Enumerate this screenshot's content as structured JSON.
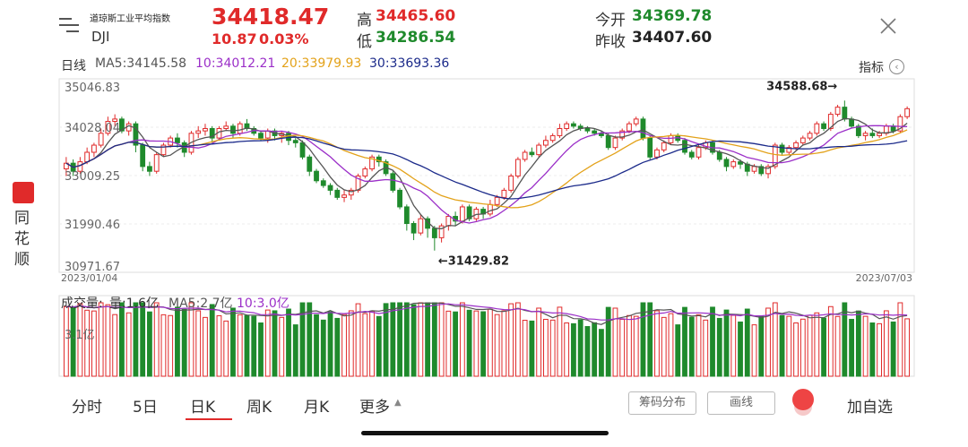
{
  "header": {
    "index_name": "道琼斯工业平均指数",
    "code": "DJI",
    "price": "34418.47",
    "change": "10.87",
    "change_pct": "0.03%",
    "high_label": "高",
    "high": "34465.60",
    "low_label": "低",
    "low": "34286.54",
    "open_label": "今开",
    "open": "34369.78",
    "prev_close_label": "昨收",
    "prev_close": "34407.60"
  },
  "chart_header": {
    "period": "日线",
    "ma5": "MA5:34145.58",
    "ma10": "10:34012.21",
    "ma20": "20:33979.93",
    "ma30": "30:33693.36",
    "indicator_label": "指标"
  },
  "volume_header": {
    "title": "成交量:",
    "vol": "量:1.6亿",
    "ma5": "MA5:2.7亿",
    "ma10": "10:3.0亿",
    "axis_label": "3.1亿"
  },
  "side": {
    "brand": "同花顺"
  },
  "tabs": [
    "分时",
    "5日",
    "日K",
    "周K",
    "月K",
    "更多"
  ],
  "active_tab": "日K",
  "buttons": {
    "chips": "筹码分布",
    "draw": "画线",
    "add": "加自选"
  },
  "colors": {
    "up": "#e02a2a",
    "down": "#1f8a2c",
    "ma5": "#555555",
    "ma10": "#9b2fc8",
    "ma20": "#e3a21a",
    "ma30": "#1b2a8a"
  },
  "chart_data": {
    "type": "candlestick",
    "y_ticks": [
      35046.83,
      34028.04,
      33009.25,
      31990.46,
      30971.67
    ],
    "y_tick_labels": [
      "35046.83",
      "34028.04",
      "33009.25",
      "31990.46",
      "30971.67"
    ],
    "ylim": [
      30971.67,
      35046.83
    ],
    "x_start_label": "2023/01/04",
    "x_end_label": "2023/07/03",
    "max_annotation": "34588.68→",
    "min_annotation": "←31429.82",
    "max_value": 34588.68,
    "min_value": 31429.82,
    "candles": [
      [
        33150,
        33270,
        33400,
        33000
      ],
      [
        33270,
        33100,
        33350,
        33000
      ],
      [
        33100,
        33300,
        33400,
        33050
      ],
      [
        33300,
        33500,
        33600,
        33250
      ],
      [
        33500,
        33650,
        33700,
        33400
      ],
      [
        33650,
        33900,
        34000,
        33600
      ],
      [
        33900,
        34150,
        34250,
        33850
      ],
      [
        34150,
        34200,
        34300,
        34050
      ],
      [
        34200,
        33950,
        34250,
        33900
      ],
      [
        33950,
        34100,
        34150,
        33850
      ],
      [
        34100,
        33650,
        34150,
        33500
      ],
      [
        33650,
        33200,
        33700,
        33100
      ],
      [
        33200,
        33100,
        33300,
        33000
      ],
      [
        33100,
        33450,
        33500,
        33050
      ],
      [
        33450,
        33650,
        33700,
        33400
      ],
      [
        33650,
        33800,
        33850,
        33600
      ],
      [
        33800,
        33700,
        33900,
        33600
      ],
      [
        33700,
        33500,
        33750,
        33400
      ],
      [
        33500,
        33900,
        33950,
        33450
      ],
      [
        33900,
        33950,
        34050,
        33800
      ],
      [
        33950,
        34000,
        34100,
        33850
      ],
      [
        34000,
        33800,
        34050,
        33700
      ],
      [
        33800,
        34000,
        34050,
        33750
      ],
      [
        34000,
        34050,
        34150,
        33950
      ],
      [
        34050,
        33900,
        34100,
        33800
      ],
      [
        33900,
        34100,
        34150,
        33850
      ],
      [
        34100,
        34000,
        34200,
        33950
      ],
      [
        34000,
        33900,
        34050,
        33850
      ],
      [
        33900,
        33800,
        33950,
        33750
      ],
      [
        33800,
        33950,
        34000,
        33700
      ],
      [
        33950,
        33850,
        34000,
        33750
      ],
      [
        33850,
        33900,
        33950,
        33700
      ],
      [
        33900,
        33750,
        33950,
        33650
      ],
      [
        33750,
        33700,
        33800,
        33600
      ],
      [
        33700,
        33400,
        33750,
        33350
      ],
      [
        33400,
        33100,
        33450,
        33000
      ],
      [
        33100,
        32900,
        33150,
        32850
      ],
      [
        32900,
        32800,
        32950,
        32750
      ],
      [
        32800,
        32700,
        32850,
        32600
      ],
      [
        32700,
        32550,
        32750,
        32500
      ],
      [
        32550,
        32600,
        32700,
        32450
      ],
      [
        32600,
        32700,
        32750,
        32500
      ],
      [
        32700,
        33000,
        33050,
        32650
      ],
      [
        33000,
        33150,
        33200,
        32950
      ],
      [
        33150,
        33400,
        33450,
        33100
      ],
      [
        33400,
        33300,
        33450,
        33200
      ],
      [
        33300,
        33050,
        33350,
        33000
      ],
      [
        33050,
        32700,
        33100,
        32650
      ],
      [
        32700,
        32350,
        32750,
        32300
      ],
      [
        32350,
        32000,
        32400,
        31850
      ],
      [
        32000,
        31800,
        32050,
        31650
      ],
      [
        31800,
        32100,
        32200,
        31750
      ],
      [
        32100,
        31900,
        32150,
        31700
      ],
      [
        31900,
        31700,
        31950,
        31430
      ],
      [
        31700,
        31950,
        32000,
        31600
      ],
      [
        31950,
        32150,
        32200,
        31850
      ],
      [
        32150,
        32050,
        32250,
        31950
      ],
      [
        32050,
        32350,
        32400,
        32000
      ],
      [
        32350,
        32100,
        32400,
        32050
      ],
      [
        32100,
        32300,
        32350,
        32050
      ],
      [
        32300,
        32200,
        32350,
        32100
      ],
      [
        32200,
        32400,
        32500,
        32150
      ],
      [
        32400,
        32550,
        32600,
        32350
      ],
      [
        32550,
        32700,
        32750,
        32500
      ],
      [
        32700,
        33000,
        33050,
        32650
      ],
      [
        33000,
        33350,
        33400,
        32950
      ],
      [
        33350,
        33500,
        33550,
        33300
      ],
      [
        33500,
        33450,
        33600,
        33400
      ],
      [
        33450,
        33650,
        33700,
        33400
      ],
      [
        33650,
        33750,
        33850,
        33600
      ],
      [
        33750,
        33850,
        33900,
        33700
      ],
      [
        33850,
        34000,
        34100,
        33800
      ],
      [
        34000,
        34100,
        34150,
        33950
      ],
      [
        34100,
        34050,
        34150,
        34000
      ],
      [
        34050,
        34000,
        34100,
        33950
      ],
      [
        34000,
        33950,
        34050,
        33900
      ],
      [
        33950,
        33900,
        34000,
        33850
      ],
      [
        33900,
        33850,
        33950,
        33800
      ],
      [
        33850,
        33600,
        33900,
        33550
      ],
      [
        33600,
        33800,
        33850,
        33550
      ],
      [
        33800,
        33950,
        34000,
        33750
      ],
      [
        33950,
        34100,
        34150,
        33900
      ],
      [
        34100,
        34200,
        34250,
        34050
      ],
      [
        34200,
        33800,
        34250,
        33750
      ],
      [
        33800,
        33400,
        33850,
        33350
      ],
      [
        33400,
        33550,
        33600,
        33350
      ],
      [
        33550,
        33700,
        33750,
        33500
      ],
      [
        33700,
        33850,
        33900,
        33650
      ],
      [
        33850,
        33750,
        33900,
        33700
      ],
      [
        33750,
        33500,
        33800,
        33450
      ],
      [
        33500,
        33400,
        33550,
        33350
      ],
      [
        33400,
        33600,
        33650,
        33350
      ],
      [
        33600,
        33700,
        33750,
        33550
      ],
      [
        33700,
        33500,
        33750,
        33450
      ],
      [
        33500,
        33350,
        33550,
        33300
      ],
      [
        33350,
        33200,
        33400,
        33100
      ],
      [
        33200,
        33300,
        33350,
        33150
      ],
      [
        33300,
        33250,
        33350,
        33150
      ],
      [
        33250,
        33100,
        33300,
        33000
      ],
      [
        33100,
        33200,
        33250,
        33050
      ],
      [
        33200,
        33050,
        33250,
        33000
      ],
      [
        33050,
        33200,
        33250,
        32950
      ],
      [
        33200,
        33650,
        33700,
        33150
      ],
      [
        33650,
        33500,
        33700,
        33450
      ],
      [
        33500,
        33600,
        33650,
        33450
      ],
      [
        33600,
        33700,
        33750,
        33550
      ],
      [
        33700,
        33800,
        33850,
        33650
      ],
      [
        33800,
        33900,
        33950,
        33750
      ],
      [
        33900,
        34100,
        34150,
        33850
      ],
      [
        34100,
        34000,
        34150,
        33950
      ],
      [
        34000,
        34300,
        34350,
        33950
      ],
      [
        34300,
        34450,
        34500,
        34250
      ],
      [
        34450,
        34200,
        34589,
        34150
      ],
      [
        34200,
        34050,
        34250,
        34000
      ],
      [
        34050,
        33850,
        34100,
        33800
      ],
      [
        33850,
        33900,
        33950,
        33750
      ],
      [
        33900,
        33850,
        34000,
        33800
      ],
      [
        33850,
        33900,
        33950,
        33800
      ],
      [
        33900,
        34050,
        34100,
        33850
      ],
      [
        34050,
        33950,
        34100,
        33900
      ],
      [
        33950,
        34250,
        34300,
        33900
      ],
      [
        34250,
        34418,
        34466,
        34200
      ]
    ],
    "volume_ylim": [
      0,
      3.1
    ]
  }
}
